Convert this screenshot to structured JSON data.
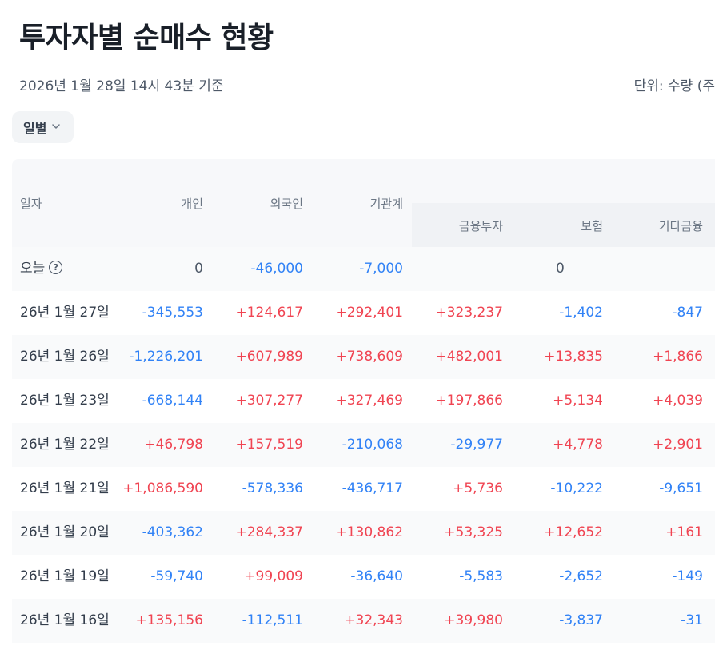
{
  "page": {
    "title": "투자자별 순매수 현황",
    "timestamp": "2026년 1월 28일 14시 43분 기준",
    "unit": "단위: 수량 (주"
  },
  "filter": {
    "period_label": "일별"
  },
  "colors": {
    "positive": "#f04452",
    "negative": "#3182f6"
  },
  "table": {
    "headers": {
      "date": "일자",
      "individual": "개인",
      "foreign": "외국인",
      "institution": "기관계",
      "financial": "금융투자",
      "insurance": "보험",
      "other_financial": "기타금융"
    },
    "today": {
      "label": "오늘",
      "help_icon": "question-circle-icon",
      "individual": "0",
      "foreign": "-46,000",
      "institution": "-7,000",
      "sub_total": "0"
    },
    "rows": [
      {
        "date": "26년 1월 27일",
        "individual": "-345,553",
        "foreign": "+124,617",
        "institution": "+292,401",
        "financial": "+323,237",
        "insurance": "-1,402",
        "other_financial": "-847"
      },
      {
        "date": "26년 1월 26일",
        "individual": "-1,226,201",
        "foreign": "+607,989",
        "institution": "+738,609",
        "financial": "+482,001",
        "insurance": "+13,835",
        "other_financial": "+1,866"
      },
      {
        "date": "26년 1월 23일",
        "individual": "-668,144",
        "foreign": "+307,277",
        "institution": "+327,469",
        "financial": "+197,866",
        "insurance": "+5,134",
        "other_financial": "+4,039"
      },
      {
        "date": "26년 1월 22일",
        "individual": "+46,798",
        "foreign": "+157,519",
        "institution": "-210,068",
        "financial": "-29,977",
        "insurance": "+4,778",
        "other_financial": "+2,901"
      },
      {
        "date": "26년 1월 21일",
        "individual": "+1,086,590",
        "foreign": "-578,336",
        "institution": "-436,717",
        "financial": "+5,736",
        "insurance": "-10,222",
        "other_financial": "-9,651"
      },
      {
        "date": "26년 1월 20일",
        "individual": "-403,362",
        "foreign": "+284,337",
        "institution": "+130,862",
        "financial": "+53,325",
        "insurance": "+12,652",
        "other_financial": "+161"
      },
      {
        "date": "26년 1월 19일",
        "individual": "-59,740",
        "foreign": "+99,009",
        "institution": "-36,640",
        "financial": "-5,583",
        "insurance": "-2,652",
        "other_financial": "-149"
      },
      {
        "date": "26년 1월 16일",
        "individual": "+135,156",
        "foreign": "-112,511",
        "institution": "+32,343",
        "financial": "+39,980",
        "insurance": "-3,837",
        "other_financial": "-31"
      }
    ]
  }
}
